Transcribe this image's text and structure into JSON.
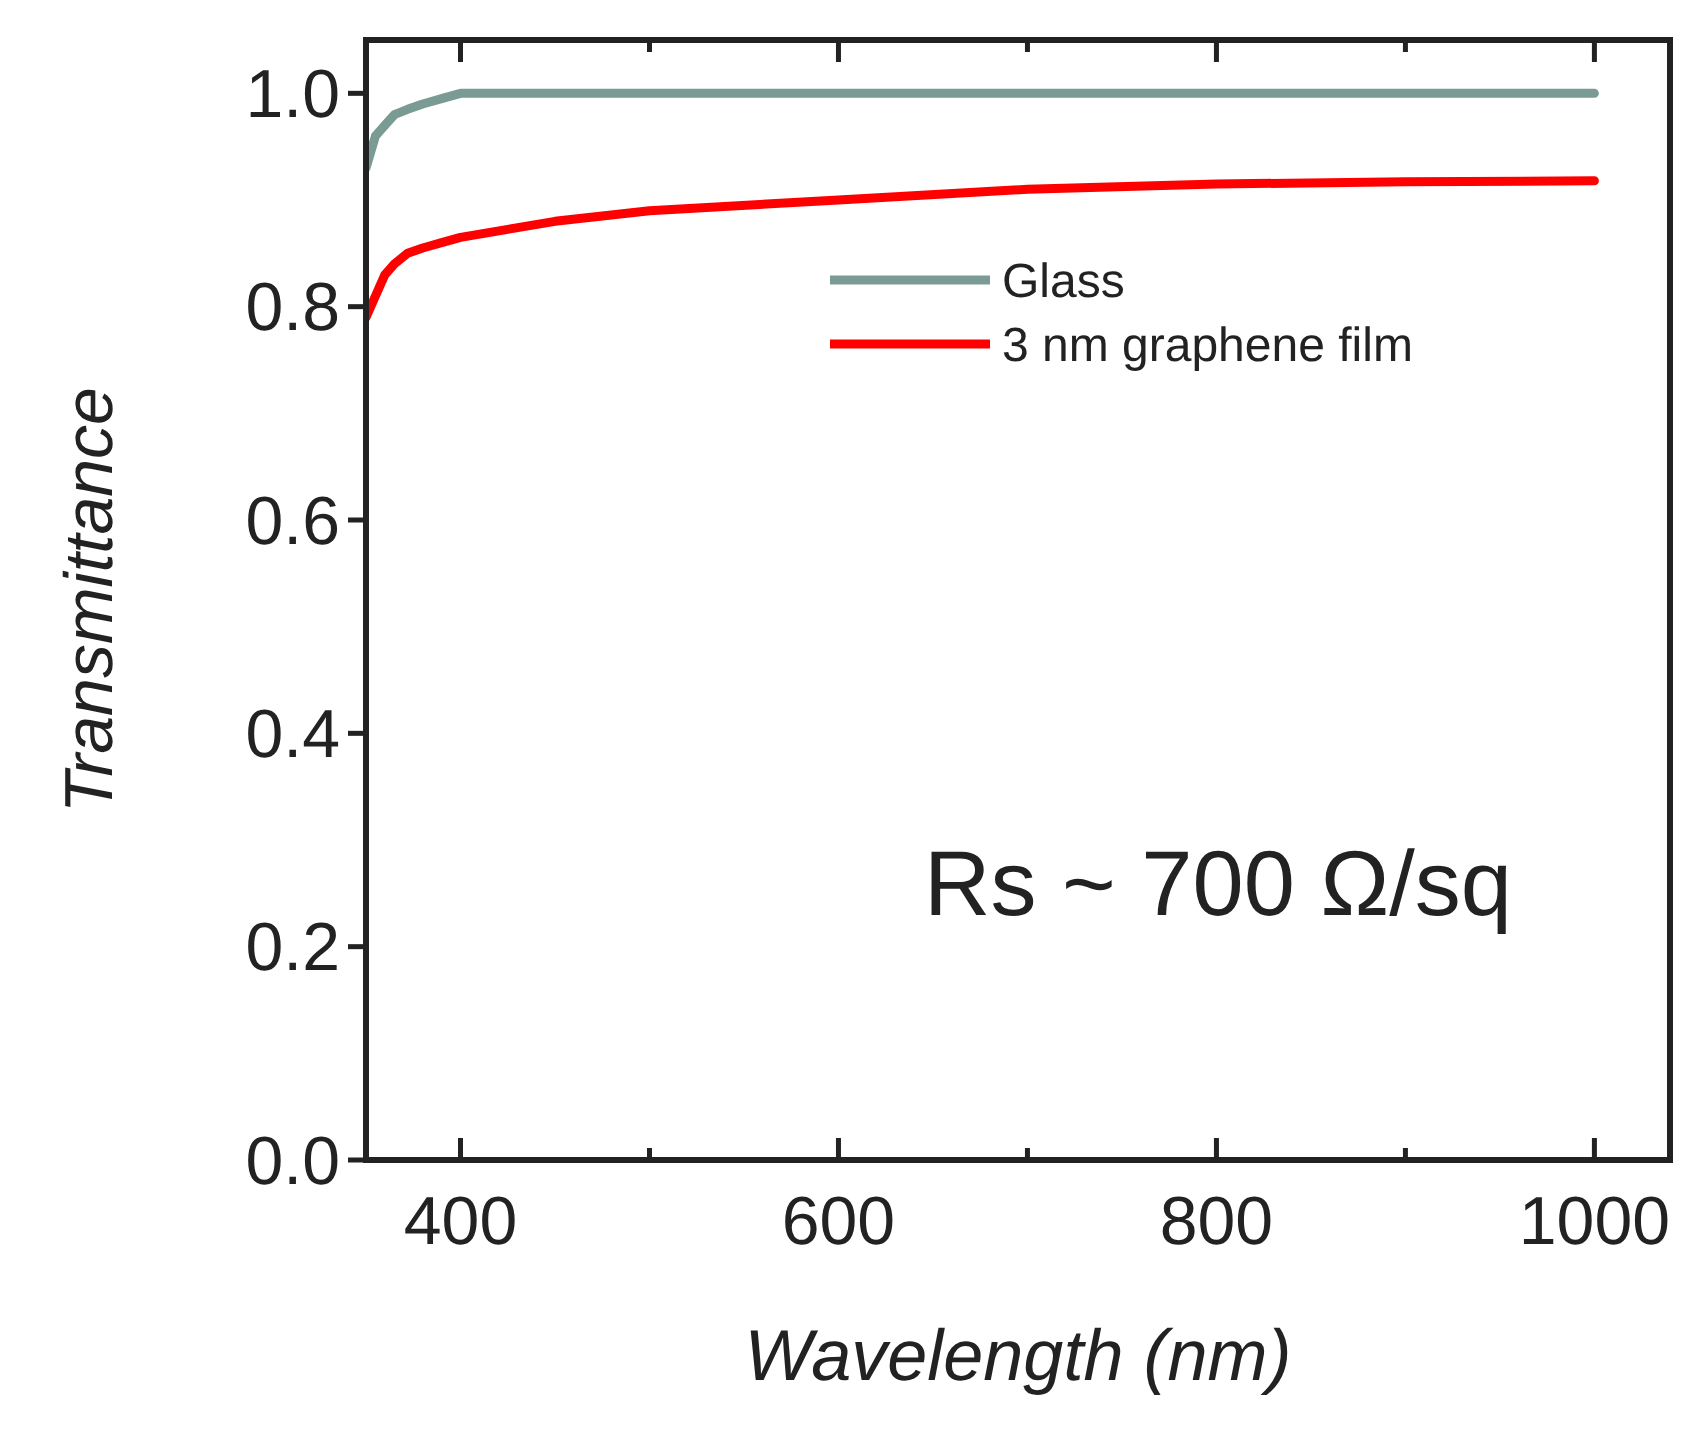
{
  "chart_data": {
    "type": "line",
    "xlabel": "Wavelength (nm)",
    "ylabel": "Transmittance",
    "x": [
      350,
      355,
      360,
      365,
      372,
      380,
      390,
      400,
      450,
      500,
      600,
      700,
      800,
      900,
      1000
    ],
    "series": [
      {
        "name": "Glass",
        "color": "#7a9a94",
        "values": [
          0.93,
          0.96,
          0.97,
          0.98,
          0.985,
          0.99,
          0.995,
          1.0,
          1.0,
          1.0,
          1.0,
          1.0,
          1.0,
          1.0,
          1.0
        ]
      },
      {
        "name": "3 nm graphene film",
        "color": "#ff0000",
        "values": [
          0.79,
          0.81,
          0.83,
          0.84,
          0.85,
          0.855,
          0.86,
          0.865,
          0.88,
          0.89,
          0.9,
          0.91,
          0.915,
          0.917,
          0.918
        ]
      }
    ],
    "xlim": [
      350,
      1040
    ],
    "ylim": [
      0,
      1.05
    ],
    "xticks": [
      400,
      {
        "value": 500,
        "label": null
      },
      600,
      {
        "value": 700,
        "label": null
      },
      800,
      {
        "value": 900,
        "label": null
      },
      1000
    ],
    "yticks": [
      {
        "value": 0,
        "label": "0.0"
      },
      0.2,
      0.4,
      0.6,
      0.8,
      {
        "value": 1,
        "label": "1.0"
      }
    ],
    "annotations": [
      "Rs ~ 700 Ω/sq"
    ],
    "legend": "top right",
    "grid": false,
    "marker": "none",
    "line_style": "solid"
  }
}
